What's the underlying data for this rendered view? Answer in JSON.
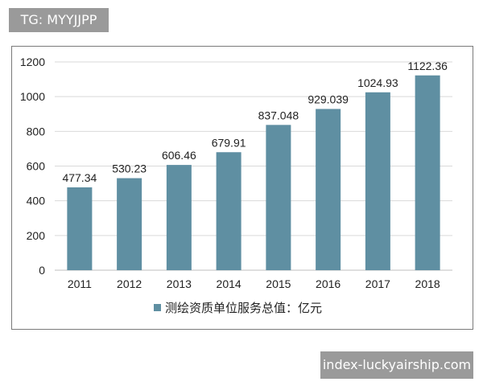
{
  "watermark_top": "TG: MYYJJPP",
  "watermark_bottom": "index-luckyairship.com",
  "colors": {
    "bar": "#5f8fa2",
    "grid": "#d9d9d9",
    "axis": "#bfbfbf",
    "text": "#222222"
  },
  "chart_data": {
    "type": "bar",
    "categories": [
      "2011",
      "2012",
      "2013",
      "2014",
      "2015",
      "2016",
      "2017",
      "2018"
    ],
    "series": [
      {
        "name": "测绘资质单位服务总值：亿元",
        "values": [
          477.34,
          530.23,
          606.46,
          679.91,
          837.048,
          929.039,
          1024.93,
          1122.36
        ]
      }
    ],
    "data_labels": [
      "477.34",
      "530.23",
      "606.46",
      "679.91",
      "837.048",
      "929.039",
      "1024.93",
      "1122.36"
    ],
    "ylim": [
      0,
      1200
    ],
    "yticks": [
      "0",
      "200",
      "400",
      "600",
      "800",
      "1000",
      "1200"
    ],
    "grid": true,
    "legend": "bottom",
    "title": "",
    "xlabel": "",
    "ylabel": ""
  }
}
